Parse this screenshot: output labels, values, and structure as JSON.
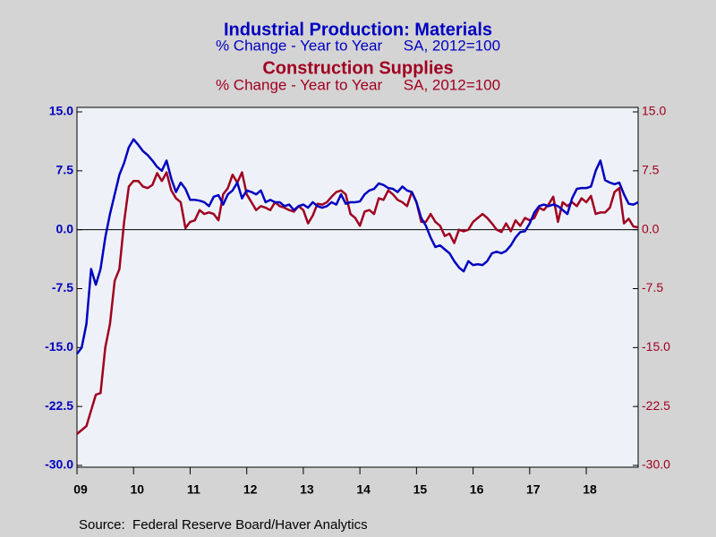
{
  "chart_data": {
    "type": "line",
    "series": [
      {
        "name": "Industrial Production: Materials",
        "subtitle": "% Change - Year to Year     SA, 2012=100",
        "color": "#0000c0",
        "axis": "y",
        "values": [
          -15.8,
          -15,
          -12,
          -5,
          -7,
          -5,
          -1,
          2,
          4.5,
          7,
          8.5,
          10.5,
          11.5,
          10.8,
          10,
          9.5,
          8.8,
          8,
          7.5,
          8.8,
          6.5,
          4.8,
          6,
          5.2,
          3.8,
          3.8,
          3.7,
          3.5,
          3,
          4.2,
          4.4,
          3.2,
          4.5,
          5,
          6,
          4,
          5,
          4.8,
          4.5,
          5,
          3.5,
          3.8,
          3.5,
          3.5,
          3,
          3.2,
          2.5,
          3,
          3.2,
          2.8,
          3.5,
          3,
          2.8,
          3,
          3.5,
          3.2,
          4.5,
          3.3,
          3.5,
          3.5,
          3.6,
          4.5,
          5,
          5.2,
          5.9,
          5.7,
          5.3,
          5.2,
          4.8,
          5.5,
          5,
          4.8,
          3.5,
          1.5,
          0.5,
          -1,
          -2.2,
          -2,
          -2.5,
          -3,
          -4,
          -4.8,
          -5.3,
          -4,
          -4.5,
          -4.4,
          -4.5,
          -4,
          -3,
          -2.8,
          -3,
          -2.7,
          -2,
          -1,
          -0.3,
          -0.2,
          0.8,
          2.2,
          3,
          3.2,
          3,
          3.2,
          3,
          2.5,
          2,
          4,
          5.2,
          5.3,
          5.3,
          5.5,
          7.5,
          8.8,
          6.3,
          6,
          5.8,
          6,
          4.5,
          3.3,
          3.2,
          3.5
        ]
      },
      {
        "name": "Construction Supplies",
        "subtitle": "% Change - Year to Year     SA, 2012=100",
        "color": "#a00020",
        "axis": "y2",
        "values": [
          -26,
          -25.5,
          -25,
          -23,
          -21,
          -20.8,
          -15,
          -12,
          -6.5,
          -5,
          1,
          5.5,
          6.2,
          6.2,
          5.5,
          5.3,
          5.7,
          7.2,
          6.2,
          7.3,
          5,
          4,
          3.5,
          0.2,
          1,
          1.2,
          2.5,
          2,
          2.2,
          2,
          1.2,
          4.5,
          5.3,
          7,
          6,
          7.3,
          4.5,
          3.5,
          2.5,
          3,
          2.8,
          2.5,
          3.5,
          3,
          2.8,
          2.5,
          2.3,
          3,
          2.5,
          0.8,
          1.8,
          3.3,
          3.2,
          3.5,
          4.2,
          4.8,
          5,
          4.5,
          2,
          1.5,
          0.5,
          2.3,
          2.5,
          2,
          4,
          3.8,
          5,
          4.5,
          3.8,
          3.5,
          3,
          4.8,
          3.5,
          1,
          1,
          2,
          1,
          0.5,
          -0.8,
          -0.5,
          -1.7,
          0,
          -0.2,
          0,
          1,
          1.5,
          2,
          1.5,
          0.8,
          0,
          -0.3,
          0.8,
          -0.2,
          1.2,
          0.5,
          1.5,
          1.2,
          1.5,
          2.8,
          2.5,
          3.2,
          4.2,
          1,
          3.5,
          3,
          3.5,
          3,
          4,
          3.5,
          4.3,
          2,
          2.2,
          2.2,
          2.8,
          4.8,
          5.3,
          0.8,
          1.4,
          0.4,
          0.3
        ]
      }
    ],
    "categories": [
      "09",
      null,
      null,
      null,
      null,
      null,
      null,
      null,
      null,
      null,
      null,
      null,
      "10",
      null,
      null,
      null,
      null,
      null,
      null,
      null,
      null,
      null,
      null,
      null,
      "11",
      null,
      null,
      null,
      null,
      null,
      null,
      null,
      null,
      null,
      null,
      null,
      "12",
      null,
      null,
      null,
      null,
      null,
      null,
      null,
      null,
      null,
      null,
      null,
      "13",
      null,
      null,
      null,
      null,
      null,
      null,
      null,
      null,
      null,
      null,
      null,
      "14",
      null,
      null,
      null,
      null,
      null,
      null,
      null,
      null,
      null,
      null,
      null,
      "15",
      null,
      null,
      null,
      null,
      null,
      null,
      null,
      null,
      null,
      null,
      null,
      "16",
      null,
      null,
      null,
      null,
      null,
      null,
      null,
      null,
      null,
      null,
      null,
      "17",
      null,
      null,
      null,
      null,
      null,
      null,
      null,
      null,
      null,
      null,
      null,
      "18",
      null,
      null,
      null,
      null,
      null,
      null,
      null,
      null,
      null,
      null,
      null
    ],
    "ylim": [
      -30,
      15
    ],
    "yticks": [
      {
        "value": 15,
        "label": "15.0"
      },
      {
        "value": 7.5,
        "label": "7.5"
      },
      {
        "value": 0,
        "label": "0.0"
      },
      {
        "value": -7.5,
        "label": "-7.5"
      },
      {
        "value": -15,
        "label": "-15.0"
      },
      {
        "value": -22.5,
        "label": "-22.5"
      },
      {
        "value": -30,
        "label": "-30.0"
      }
    ],
    "y2lim": [
      -30,
      15
    ],
    "y2ticks": [
      {
        "value": 15,
        "label": "15.0"
      },
      {
        "value": 7.5,
        "label": "7.5"
      },
      {
        "value": 0,
        "label": "0.0"
      },
      {
        "value": -7.5,
        "label": "-7.5"
      },
      {
        "value": -15,
        "label": "-15.0"
      },
      {
        "value": -22.5,
        "label": "-22.5"
      },
      {
        "value": -30,
        "label": "-30.0"
      }
    ],
    "reference_line": 0,
    "source": "Source:  Federal Reserve Board/Haver Analytics"
  }
}
